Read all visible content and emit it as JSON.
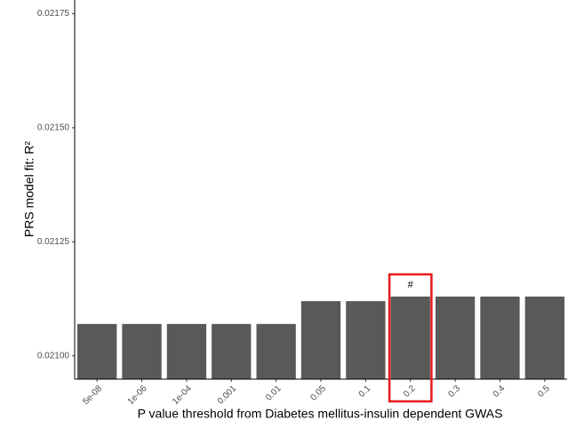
{
  "chart_data": {
    "type": "bar",
    "y_label": "PRS model fit:  R²",
    "x_label": "P value threshold from Diabetes mellitus-insulin dependent GWAS",
    "categories": [
      "5e-08",
      "1e-06",
      "1e-04",
      "0.001",
      "0.01",
      "0.05",
      "0.1",
      "0.2",
      "0.3",
      "0.4",
      "0.5"
    ],
    "values": [
      0.02107,
      0.02107,
      0.02107,
      0.02107,
      0.02107,
      0.02112,
      0.02112,
      0.02113,
      0.02113,
      0.02113,
      0.02113
    ],
    "color": "#595959",
    "ylim": [
      0.020949,
      0.02178
    ],
    "yticks": [
      {
        "value": 0.021,
        "label": "0.02100"
      },
      {
        "value": 0.02125,
        "label": "0.02125"
      },
      {
        "value": 0.0215,
        "label": "0.02150"
      },
      {
        "value": 0.02175,
        "label": "0.02175"
      }
    ],
    "annotations": [
      {
        "text": "#",
        "category": "0.2",
        "color": "#e8191c"
      }
    ],
    "grid": false
  }
}
